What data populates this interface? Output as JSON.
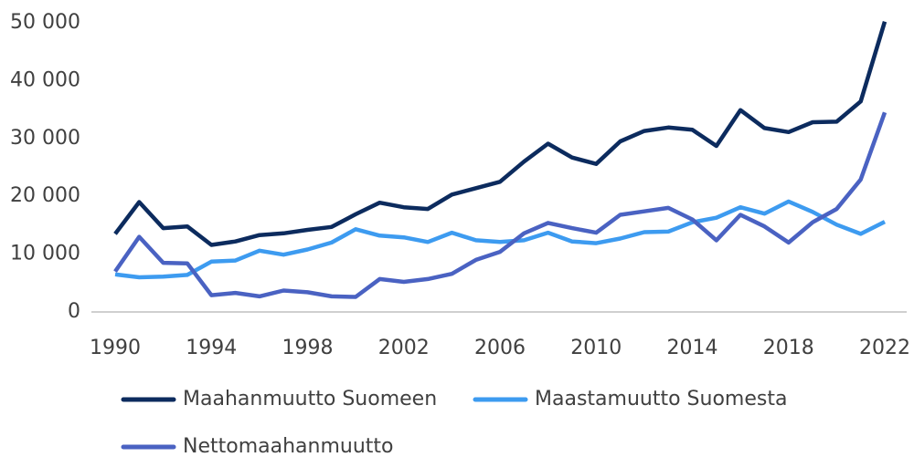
{
  "chart_data": {
    "type": "line",
    "x": [
      1990,
      1991,
      1992,
      1993,
      1994,
      1995,
      1996,
      1997,
      1998,
      1999,
      2000,
      2001,
      2002,
      2003,
      2004,
      2005,
      2006,
      2007,
      2008,
      2009,
      2010,
      2011,
      2012,
      2013,
      2014,
      2015,
      2016,
      2017,
      2018,
      2019,
      2020,
      2021,
      2022
    ],
    "xlim": [
      1990,
      2022
    ],
    "xticks": [
      1990,
      1994,
      1998,
      2002,
      2006,
      2010,
      2014,
      2018,
      2022
    ],
    "ylim": [
      0,
      50000
    ],
    "yticks": [
      0,
      {
        "value": 10000,
        "label": "10 000"
      },
      {
        "value": 20000,
        "label": "20 000"
      },
      {
        "value": 30000,
        "label": "30 000"
      },
      {
        "value": 40000,
        "label": "40 000"
      },
      {
        "value": 50000,
        "label": "50 000"
      }
    ],
    "grid": false,
    "legend": "bottom",
    "series": [
      {
        "name": "Maahanmuutto Suomeen",
        "color": "#0c2b5e",
        "values": [
          13500,
          19000,
          14500,
          14800,
          11600,
          12200,
          13300,
          13600,
          14200,
          14700,
          16900,
          18900,
          18100,
          17800,
          20300,
          21400,
          22500,
          26000,
          29100,
          26700,
          25600,
          29500,
          31300,
          31900,
          31500,
          28700,
          34900,
          31800,
          31100,
          32800,
          32900,
          36400,
          50200
        ]
      },
      {
        "name": "Maastamuutto Suomesta",
        "color": "#3d9bf0",
        "values": [
          6500,
          6000,
          6100,
          6400,
          8700,
          8900,
          10600,
          9900,
          10800,
          12000,
          14300,
          13200,
          12900,
          12100,
          13700,
          12400,
          12100,
          12400,
          13700,
          12200,
          11900,
          12700,
          13800,
          13900,
          15500,
          16300,
          18100,
          17000,
          19100,
          17300,
          15100,
          13500,
          15600
        ]
      },
      {
        "name": "Nettomaahanmuutto",
        "color": "#4a62c2",
        "values": [
          7000,
          13000,
          8500,
          8400,
          2900,
          3300,
          2700,
          3700,
          3400,
          2700,
          2600,
          5700,
          5200,
          5700,
          6600,
          9000,
          10400,
          13600,
          15400,
          14500,
          13700,
          16800,
          17400,
          18000,
          16000,
          12400,
          16800,
          14800,
          12000,
          15500,
          17800,
          22900,
          34500
        ]
      }
    ]
  }
}
